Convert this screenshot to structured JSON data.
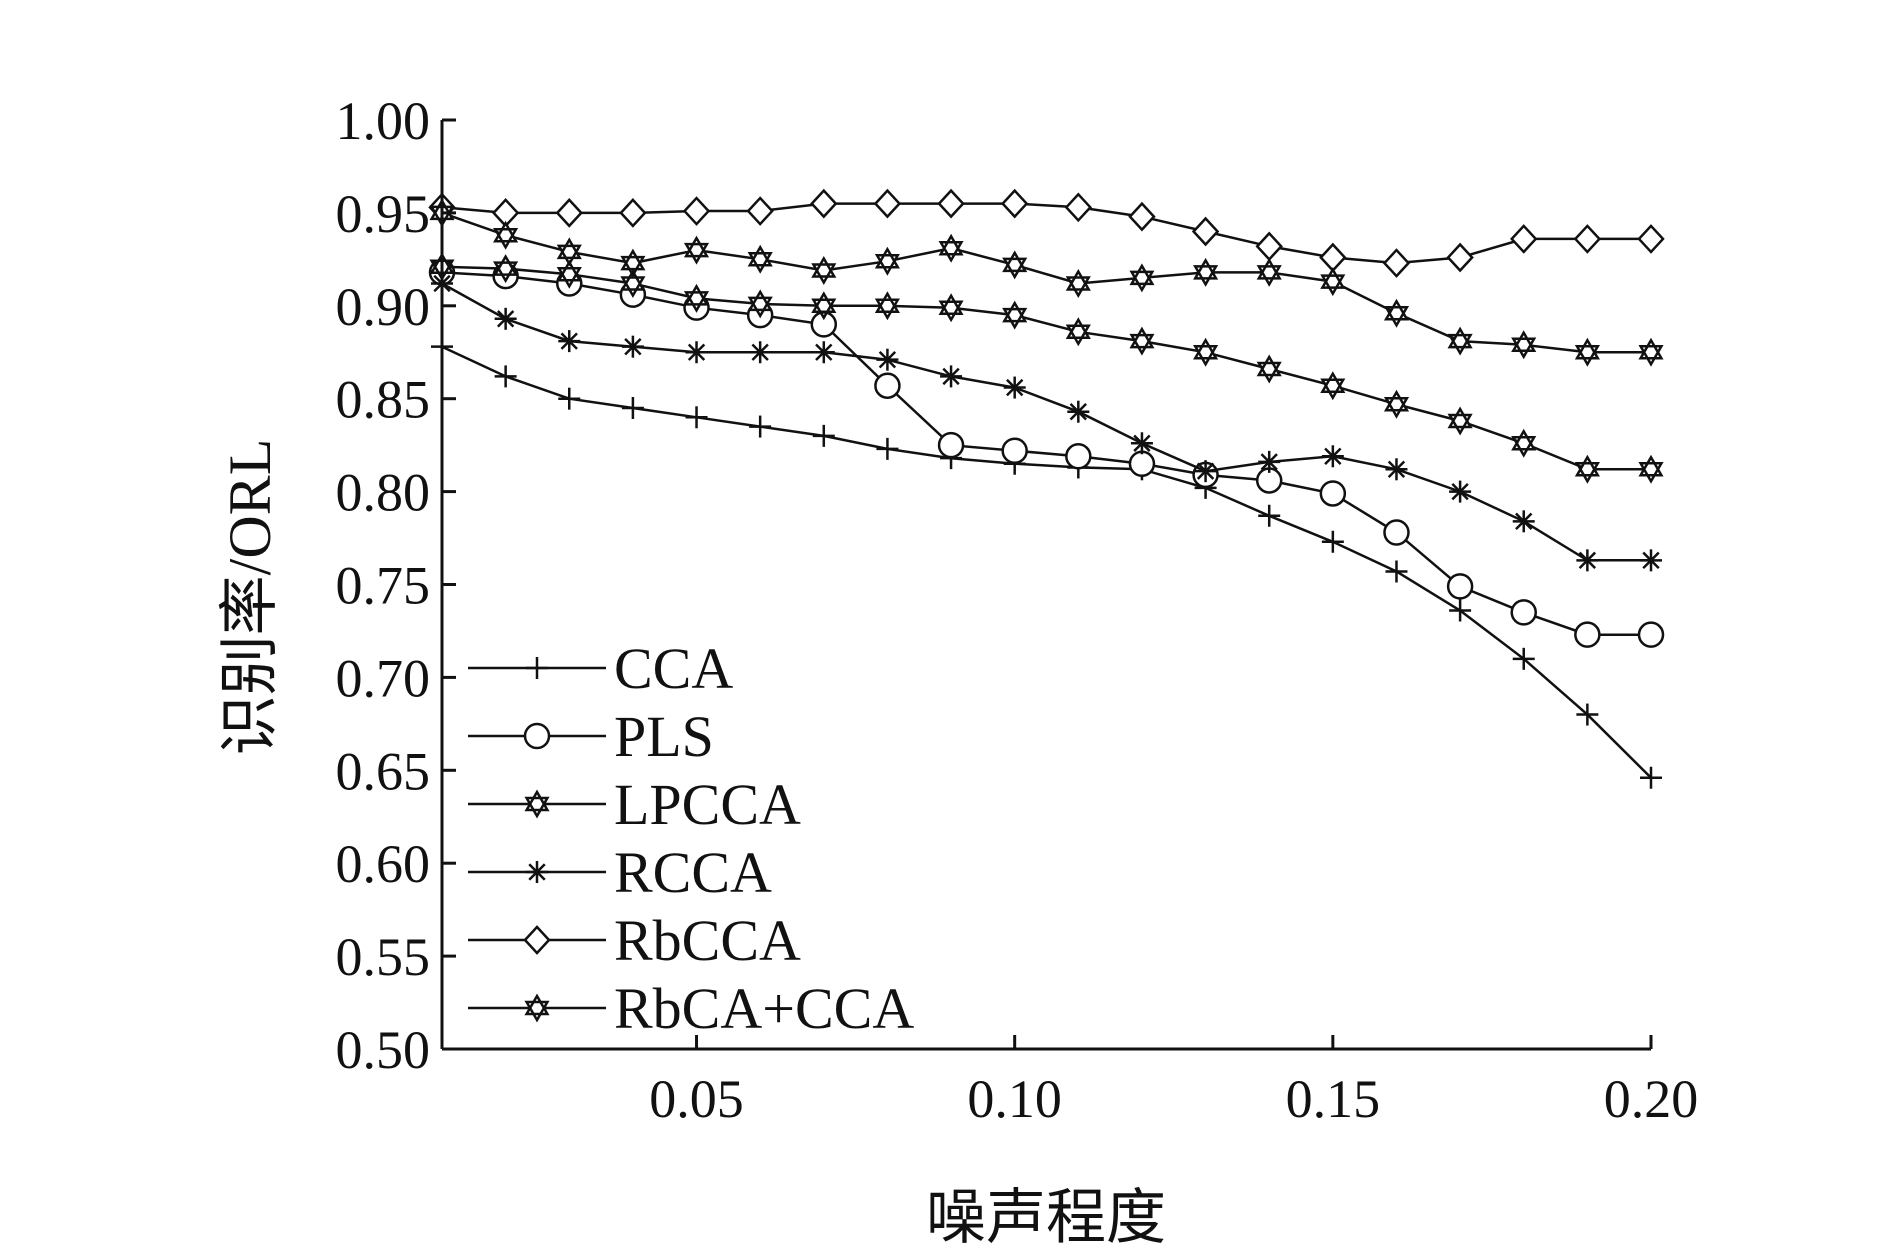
{
  "chart_data": {
    "type": "line",
    "xlabel": "噪声程度",
    "ylabel": "识别率/ORL",
    "xlim": [
      0.01,
      0.2
    ],
    "ylim": [
      0.5,
      1.0
    ],
    "x_ticks": [
      "0.05",
      "0.10",
      "0.15",
      "0.20"
    ],
    "y_ticks": [
      "0.50",
      "0.55",
      "0.60",
      "0.65",
      "0.70",
      "0.75",
      "0.80",
      "0.85",
      "0.90",
      "0.95",
      "1.00"
    ],
    "legend_position": "bottom-left",
    "x": [
      0.01,
      0.02,
      0.03,
      0.04,
      0.05,
      0.06,
      0.07,
      0.08,
      0.09,
      0.1,
      0.11,
      0.12,
      0.13,
      0.14,
      0.15,
      0.16,
      0.17,
      0.18,
      0.19,
      0.2
    ],
    "series": [
      {
        "name": "CCA",
        "marker": "plus",
        "values": [
          0.878,
          0.862,
          0.85,
          0.845,
          0.84,
          0.835,
          0.83,
          0.823,
          0.818,
          0.815,
          0.813,
          0.812,
          0.802,
          0.787,
          0.773,
          0.757,
          0.736,
          0.71,
          0.68,
          0.646
        ]
      },
      {
        "name": "PLS",
        "marker": "circle",
        "values": [
          0.918,
          0.916,
          0.912,
          0.906,
          0.899,
          0.895,
          0.89,
          0.857,
          0.825,
          0.822,
          0.819,
          0.815,
          0.809,
          0.806,
          0.799,
          0.778,
          0.749,
          0.735,
          0.723,
          0.723
        ]
      },
      {
        "name": "LPCCA",
        "marker": "star6",
        "values": [
          0.921,
          0.92,
          0.917,
          0.912,
          0.904,
          0.901,
          0.9,
          0.9,
          0.899,
          0.895,
          0.886,
          0.881,
          0.875,
          0.866,
          0.857,
          0.847,
          0.838,
          0.826,
          0.812,
          0.812
        ]
      },
      {
        "name": "RCCA",
        "marker": "asterisk",
        "values": [
          0.912,
          0.893,
          0.881,
          0.878,
          0.875,
          0.875,
          0.875,
          0.871,
          0.862,
          0.856,
          0.843,
          0.826,
          0.811,
          0.816,
          0.819,
          0.812,
          0.8,
          0.784,
          0.763,
          0.763
        ]
      },
      {
        "name": "RbCCA",
        "marker": "diamond",
        "values": [
          0.953,
          0.95,
          0.95,
          0.95,
          0.951,
          0.951,
          0.955,
          0.955,
          0.955,
          0.955,
          0.953,
          0.948,
          0.94,
          0.932,
          0.926,
          0.923,
          0.926,
          0.936,
          0.936,
          0.936
        ]
      },
      {
        "name": "RbCA+CCA",
        "marker": "star6",
        "values": [
          0.95,
          0.938,
          0.929,
          0.923,
          0.93,
          0.925,
          0.919,
          0.924,
          0.931,
          0.922,
          0.912,
          0.915,
          0.918,
          0.918,
          0.913,
          0.896,
          0.881,
          0.879,
          0.875,
          0.875
        ]
      }
    ]
  }
}
